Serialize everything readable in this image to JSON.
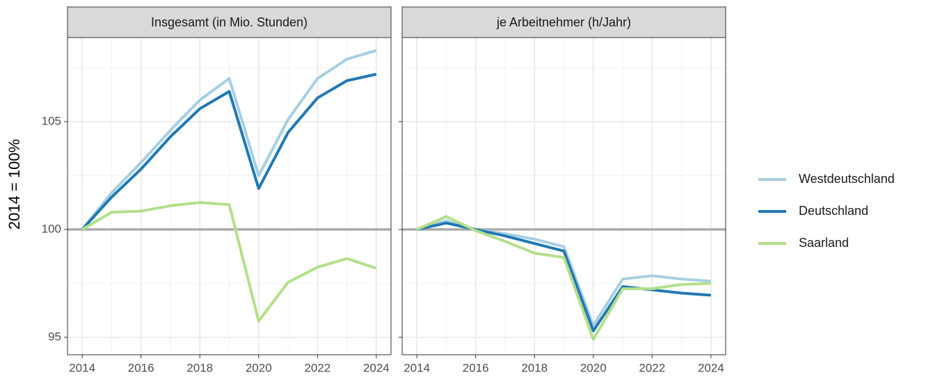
{
  "chart_data": {
    "type": "line",
    "ylabel": "2014 = 100%",
    "facets": [
      "Insgesamt (in Mio. Stunden)",
      "je Arbeitnehmer (h/Jahr)"
    ],
    "x": [
      2014,
      2015,
      2016,
      2017,
      2018,
      2019,
      2020,
      2021,
      2022,
      2023,
      2024
    ],
    "xlim": [
      2013.5,
      2024.5
    ],
    "xticks": [
      2014,
      2016,
      2018,
      2020,
      2022,
      2024
    ],
    "ylim": [
      94.19,
      108.9
    ],
    "yticks": [
      95,
      100,
      105
    ],
    "hline": 100,
    "grid": true,
    "series": [
      {
        "name": "Westdeutschland",
        "color": "#a6cee3",
        "values": [
          [
            100,
            101.7,
            103.1,
            104.6,
            106.0,
            107.0,
            102.5,
            105.1,
            107.0,
            107.9,
            108.3
          ],
          [
            100,
            100.4,
            100.0,
            99.8,
            99.55,
            99.2,
            95.55,
            97.7,
            97.85,
            97.7,
            97.6
          ]
        ]
      },
      {
        "name": "Deutschland",
        "color": "#1f78b4",
        "values": [
          [
            100,
            101.5,
            102.8,
            104.3,
            105.6,
            106.4,
            101.9,
            104.5,
            106.1,
            106.9,
            107.2
          ],
          [
            100,
            100.3,
            100.0,
            99.7,
            99.35,
            99.0,
            95.3,
            97.35,
            97.2,
            97.05,
            96.95
          ]
        ]
      },
      {
        "name": "Saarland",
        "color": "#b2df8a",
        "values": [
          [
            100,
            100.8,
            100.85,
            101.1,
            101.25,
            101.15,
            95.75,
            97.55,
            98.25,
            98.65,
            98.2
          ],
          [
            100,
            100.6,
            99.95,
            99.45,
            98.9,
            98.7,
            94.9,
            97.25,
            97.25,
            97.45,
            97.5
          ]
        ]
      }
    ]
  }
}
